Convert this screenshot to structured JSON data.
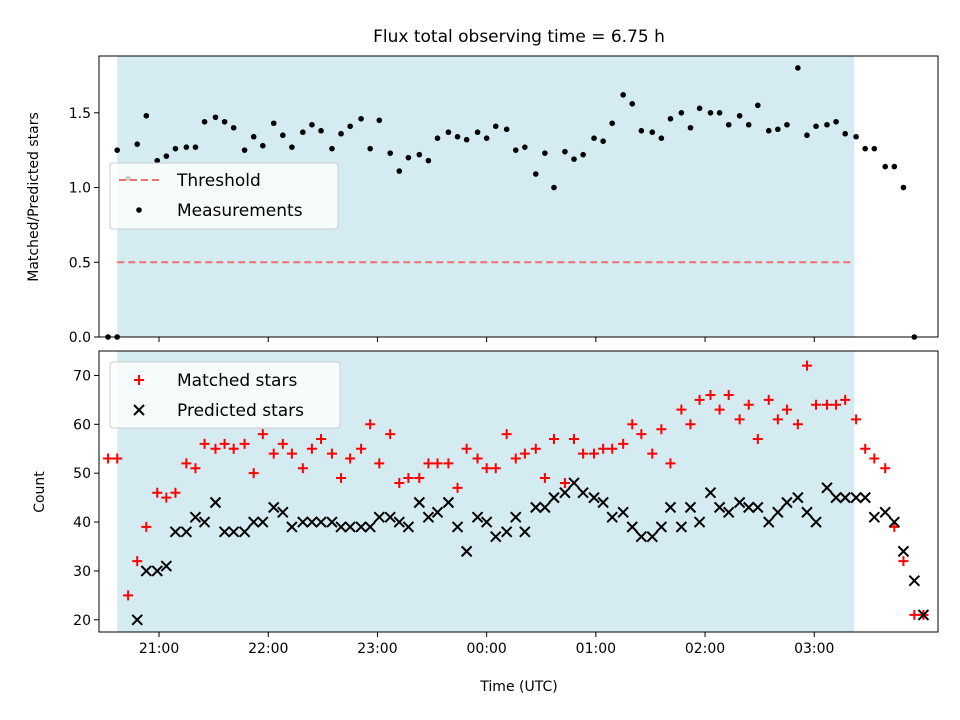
{
  "chart_data": [
    {
      "type": "scatter",
      "title": "Flux total observing time = 6.75 h",
      "ylabel": "Matched/Predicted stars",
      "xlabel": "",
      "ylim": [
        0,
        1.88
      ],
      "yticks": [
        0.0,
        0.5,
        1.0,
        1.5
      ],
      "ytick_labels": [
        "0.0",
        "0.5",
        "1.0",
        "1.5"
      ],
      "xlim": [
        "20:27",
        "04:08"
      ],
      "xticks": [
        "21:00",
        "22:00",
        "23:00",
        "00:00",
        "01:00",
        "02:00",
        "03:00"
      ],
      "observing_window": [
        "20:37",
        "03:22"
      ],
      "observing_window_color": "#d3ebf1",
      "legend": {
        "placement": "center-left",
        "entries": [
          "Threshold",
          "Measurements"
        ]
      },
      "threshold": {
        "name": "Threshold",
        "value": 0.5,
        "x_range": [
          "20:37",
          "03:22"
        ],
        "color": "#f07070"
      },
      "series": [
        {
          "name": "Measurements",
          "color": "#000000",
          "marker": "dot",
          "points": [
            [
              "20:32",
              0.0
            ],
            [
              "20:37",
              0.0
            ],
            [
              "20:37",
              1.25
            ],
            [
              "20:43",
              1.06
            ],
            [
              "20:48",
              1.29
            ],
            [
              "20:53",
              1.48
            ],
            [
              "20:59",
              1.18
            ],
            [
              "21:04",
              1.21
            ],
            [
              "21:09",
              1.26
            ],
            [
              "21:15",
              1.27
            ],
            [
              "21:20",
              1.27
            ],
            [
              "21:25",
              1.44
            ],
            [
              "21:31",
              1.47
            ],
            [
              "21:36",
              1.44
            ],
            [
              "21:41",
              1.4
            ],
            [
              "21:47",
              1.25
            ],
            [
              "21:52",
              1.34
            ],
            [
              "21:57",
              1.28
            ],
            [
              "22:03",
              1.43
            ],
            [
              "22:08",
              1.35
            ],
            [
              "22:13",
              1.27
            ],
            [
              "22:19",
              1.37
            ],
            [
              "22:24",
              1.42
            ],
            [
              "22:29",
              1.38
            ],
            [
              "22:35",
              1.26
            ],
            [
              "22:40",
              1.36
            ],
            [
              "22:45",
              1.41
            ],
            [
              "22:51",
              1.46
            ],
            [
              "22:56",
              1.26
            ],
            [
              "23:01",
              1.45
            ],
            [
              "23:07",
              1.23
            ],
            [
              "23:12",
              1.11
            ],
            [
              "23:17",
              1.2
            ],
            [
              "23:23",
              1.22
            ],
            [
              "23:28",
              1.18
            ],
            [
              "23:33",
              1.33
            ],
            [
              "23:39",
              1.37
            ],
            [
              "23:44",
              1.34
            ],
            [
              "23:49",
              1.32
            ],
            [
              "23:55",
              1.37
            ],
            [
              "00:00",
              1.33
            ],
            [
              "00:05",
              1.41
            ],
            [
              "00:11",
              1.39
            ],
            [
              "00:16",
              1.25
            ],
            [
              "00:21",
              1.27
            ],
            [
              "00:27",
              1.09
            ],
            [
              "00:32",
              1.23
            ],
            [
              "00:37",
              1.0
            ],
            [
              "00:43",
              1.24
            ],
            [
              "00:48",
              1.19
            ],
            [
              "00:53",
              1.22
            ],
            [
              "00:59",
              1.33
            ],
            [
              "01:04",
              1.31
            ],
            [
              "01:09",
              1.43
            ],
            [
              "01:15",
              1.62
            ],
            [
              "01:20",
              1.56
            ],
            [
              "01:25",
              1.38
            ],
            [
              "01:31",
              1.37
            ],
            [
              "01:36",
              1.33
            ],
            [
              "01:41",
              1.46
            ],
            [
              "01:47",
              1.5
            ],
            [
              "01:52",
              1.4
            ],
            [
              "01:57",
              1.53
            ],
            [
              "02:03",
              1.5
            ],
            [
              "02:08",
              1.5
            ],
            [
              "02:13",
              1.42
            ],
            [
              "02:19",
              1.48
            ],
            [
              "02:24",
              1.42
            ],
            [
              "02:29",
              1.55
            ],
            [
              "02:35",
              1.38
            ],
            [
              "02:40",
              1.39
            ],
            [
              "02:45",
              1.42
            ],
            [
              "02:51",
              1.8
            ],
            [
              "02:56",
              1.35
            ],
            [
              "03:01",
              1.41
            ],
            [
              "03:07",
              1.42
            ],
            [
              "03:12",
              1.44
            ],
            [
              "03:17",
              1.36
            ],
            [
              "03:23",
              1.34
            ],
            [
              "03:28",
              1.26
            ],
            [
              "03:33",
              1.26
            ],
            [
              "03:39",
              1.14
            ],
            [
              "03:44",
              1.14
            ],
            [
              "03:49",
              1.0
            ],
            [
              "03:55",
              0.0
            ]
          ]
        }
      ]
    },
    {
      "type": "scatter",
      "title": "",
      "ylabel": "Count",
      "xlabel": "Time (UTC)",
      "ylim": [
        17.5,
        75.0
      ],
      "yticks": [
        20,
        30,
        40,
        50,
        60,
        70
      ],
      "ytick_labels": [
        "20",
        "30",
        "40",
        "50",
        "60",
        "70"
      ],
      "xlim": [
        "20:27",
        "04:08"
      ],
      "xticks": [
        "21:00",
        "22:00",
        "23:00",
        "00:00",
        "01:00",
        "02:00",
        "03:00"
      ],
      "observing_window": [
        "20:37",
        "03:22"
      ],
      "observing_window_color": "#d3ebf1",
      "legend": {
        "placement": "top-left",
        "entries": [
          "Matched stars",
          "Predicted stars"
        ]
      },
      "series": [
        {
          "name": "Matched stars",
          "color": "#ff0000",
          "marker": "plus",
          "points": [
            [
              "20:32",
              53
            ],
            [
              "20:37",
              53
            ],
            [
              "20:43",
              25
            ],
            [
              "20:48",
              32
            ],
            [
              "20:53",
              39
            ],
            [
              "20:59",
              46
            ],
            [
              "21:04",
              45
            ],
            [
              "21:09",
              46
            ],
            [
              "21:15",
              52
            ],
            [
              "21:20",
              51
            ],
            [
              "21:25",
              56
            ],
            [
              "21:31",
              55
            ],
            [
              "21:36",
              56
            ],
            [
              "21:41",
              55
            ],
            [
              "21:47",
              56
            ],
            [
              "21:52",
              50
            ],
            [
              "21:57",
              58
            ],
            [
              "22:03",
              54
            ],
            [
              "22:08",
              56
            ],
            [
              "22:13",
              54
            ],
            [
              "22:19",
              51
            ],
            [
              "22:24",
              55
            ],
            [
              "22:29",
              57
            ],
            [
              "22:35",
              54
            ],
            [
              "22:40",
              49
            ],
            [
              "22:45",
              53
            ],
            [
              "22:51",
              55
            ],
            [
              "22:56",
              60
            ],
            [
              "23:01",
              52
            ],
            [
              "23:07",
              58
            ],
            [
              "23:12",
              48
            ],
            [
              "23:17",
              49
            ],
            [
              "23:23",
              49
            ],
            [
              "23:28",
              52
            ],
            [
              "23:33",
              52
            ],
            [
              "23:39",
              52
            ],
            [
              "23:44",
              47
            ],
            [
              "23:49",
              55
            ],
            [
              "23:55",
              53
            ],
            [
              "00:00",
              51
            ],
            [
              "00:05",
              51
            ],
            [
              "00:11",
              58
            ],
            [
              "00:16",
              53
            ],
            [
              "00:21",
              54
            ],
            [
              "00:27",
              55
            ],
            [
              "00:32",
              49
            ],
            [
              "00:37",
              57
            ],
            [
              "00:43",
              48
            ],
            [
              "00:48",
              57
            ],
            [
              "00:53",
              54
            ],
            [
              "00:59",
              54
            ],
            [
              "01:04",
              55
            ],
            [
              "01:09",
              55
            ],
            [
              "01:15",
              56
            ],
            [
              "01:20",
              60
            ],
            [
              "01:25",
              58
            ],
            [
              "01:31",
              54
            ],
            [
              "01:36",
              59
            ],
            [
              "01:41",
              52
            ],
            [
              "01:47",
              63
            ],
            [
              "01:52",
              60
            ],
            [
              "01:57",
              65
            ],
            [
              "02:03",
              66
            ],
            [
              "02:08",
              63
            ],
            [
              "02:13",
              66
            ],
            [
              "02:19",
              61
            ],
            [
              "02:24",
              64
            ],
            [
              "02:29",
              57
            ],
            [
              "02:35",
              65
            ],
            [
              "02:40",
              61
            ],
            [
              "02:45",
              63
            ],
            [
              "02:51",
              60
            ],
            [
              "02:56",
              72
            ],
            [
              "03:01",
              64
            ],
            [
              "03:07",
              64
            ],
            [
              "03:12",
              64
            ],
            [
              "03:17",
              65
            ],
            [
              "03:23",
              61
            ],
            [
              "03:28",
              55
            ],
            [
              "03:33",
              53
            ],
            [
              "03:39",
              51
            ],
            [
              "03:44",
              39
            ],
            [
              "03:49",
              32
            ],
            [
              "03:55",
              21
            ],
            [
              "04:00",
              21
            ]
          ]
        },
        {
          "name": "Predicted stars",
          "color": "#000000",
          "marker": "x",
          "points": [
            [
              "20:48",
              20
            ],
            [
              "20:53",
              30
            ],
            [
              "20:59",
              30
            ],
            [
              "21:04",
              31
            ],
            [
              "21:09",
              38
            ],
            [
              "21:15",
              38
            ],
            [
              "21:20",
              41
            ],
            [
              "21:25",
              40
            ],
            [
              "21:31",
              44
            ],
            [
              "21:36",
              38
            ],
            [
              "21:41",
              38
            ],
            [
              "21:47",
              38
            ],
            [
              "21:52",
              40
            ],
            [
              "21:57",
              40
            ],
            [
              "22:03",
              43
            ],
            [
              "22:08",
              42
            ],
            [
              "22:13",
              39
            ],
            [
              "22:19",
              40
            ],
            [
              "22:24",
              40
            ],
            [
              "22:29",
              40
            ],
            [
              "22:35",
              40
            ],
            [
              "22:40",
              39
            ],
            [
              "22:45",
              39
            ],
            [
              "22:51",
              39
            ],
            [
              "22:56",
              39
            ],
            [
              "23:01",
              41
            ],
            [
              "23:07",
              41
            ],
            [
              "23:12",
              40
            ],
            [
              "23:17",
              39
            ],
            [
              "23:23",
              44
            ],
            [
              "23:28",
              41
            ],
            [
              "23:33",
              42
            ],
            [
              "23:39",
              44
            ],
            [
              "23:44",
              39
            ],
            [
              "23:49",
              34
            ],
            [
              "23:55",
              41
            ],
            [
              "00:00",
              40
            ],
            [
              "00:05",
              37
            ],
            [
              "00:11",
              38
            ],
            [
              "00:16",
              41
            ],
            [
              "00:21",
              38
            ],
            [
              "00:27",
              43
            ],
            [
              "00:32",
              43
            ],
            [
              "00:37",
              45
            ],
            [
              "00:43",
              46
            ],
            [
              "00:48",
              48
            ],
            [
              "00:53",
              46
            ],
            [
              "00:59",
              45
            ],
            [
              "01:04",
              44
            ],
            [
              "01:09",
              41
            ],
            [
              "01:15",
              42
            ],
            [
              "01:20",
              39
            ],
            [
              "01:25",
              37
            ],
            [
              "01:31",
              37
            ],
            [
              "01:36",
              39
            ],
            [
              "01:41",
              43
            ],
            [
              "01:47",
              39
            ],
            [
              "01:52",
              43
            ],
            [
              "01:57",
              40
            ],
            [
              "02:03",
              46
            ],
            [
              "02:08",
              43
            ],
            [
              "02:13",
              42
            ],
            [
              "02:19",
              44
            ],
            [
              "02:24",
              43
            ],
            [
              "02:29",
              43
            ],
            [
              "02:35",
              40
            ],
            [
              "02:40",
              42
            ],
            [
              "02:45",
              44
            ],
            [
              "02:51",
              45
            ],
            [
              "02:56",
              42
            ],
            [
              "03:01",
              40
            ],
            [
              "03:07",
              47
            ],
            [
              "03:12",
              45
            ],
            [
              "03:17",
              45
            ],
            [
              "03:23",
              45
            ],
            [
              "03:28",
              45
            ],
            [
              "03:33",
              41
            ],
            [
              "03:39",
              42
            ],
            [
              "03:44",
              40
            ],
            [
              "03:49",
              34
            ],
            [
              "03:55",
              28
            ],
            [
              "04:00",
              21
            ]
          ]
        }
      ]
    }
  ]
}
